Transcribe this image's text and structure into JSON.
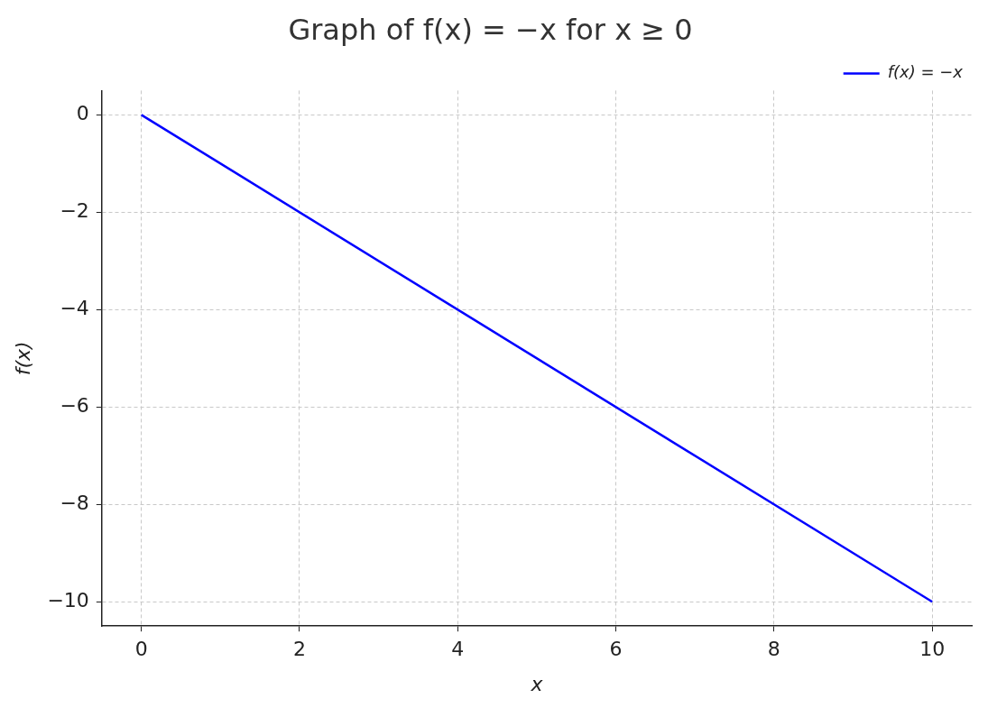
{
  "chart_data": {
    "type": "line",
    "title": "Graph of f(x) = −x for x ≥ 0",
    "xlabel": "x",
    "ylabel": "f(x)",
    "x": [
      0,
      10
    ],
    "series": [
      {
        "name": "f(x) = −x",
        "color": "#0000ff",
        "values": [
          0,
          -10
        ]
      }
    ],
    "xlim": [
      -0.5,
      10.5
    ],
    "xticks": [
      0,
      2,
      4,
      6,
      8,
      10
    ],
    "ylim": [
      -10.5,
      0.5
    ],
    "yticks": [
      {
        "value": -10,
        "label": "−10"
      },
      {
        "value": -8,
        "label": "−8"
      },
      {
        "value": -6,
        "label": "−6"
      },
      {
        "value": -4,
        "label": "−4"
      },
      {
        "value": -2,
        "label": "−2"
      },
      0
    ],
    "grid": true,
    "legend": "top right",
    "marker": "none",
    "line_style": "solid"
  }
}
